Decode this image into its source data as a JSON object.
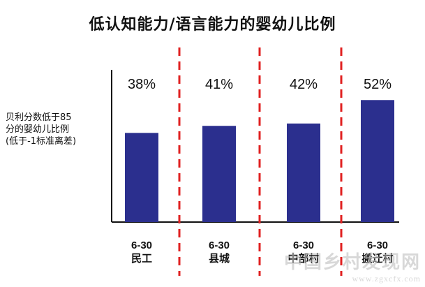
{
  "chart_data": {
    "type": "bar",
    "title": "低认知能力/语言能力的婴幼儿比例",
    "ylabel_lines": [
      "贝利分数低于85",
      "分的婴幼儿比例",
      "(低于-1标准离差)"
    ],
    "categories": [
      {
        "range": "6-30",
        "name": "民工"
      },
      {
        "range": "6-30",
        "name": "县城"
      },
      {
        "range": "6-30",
        "name": "中部村"
      },
      {
        "range": "6-30",
        "name": "搬迁村"
      }
    ],
    "values": [
      38,
      41,
      42,
      52
    ],
    "value_labels": [
      "38%",
      "41%",
      "42%",
      "52%"
    ],
    "ylim": [
      0,
      100
    ],
    "bar_color": "#2B2F8E",
    "divider_color": "#E02020",
    "grid": false,
    "legend": "none"
  },
  "watermark": {
    "text": "中国乡村发现网",
    "url": "www.zgxcfx.com"
  }
}
